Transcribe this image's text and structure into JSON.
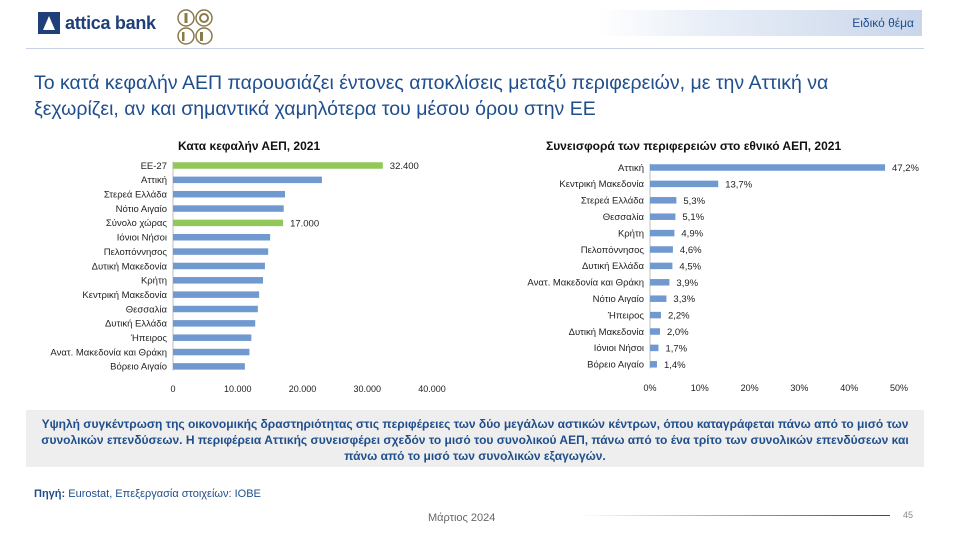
{
  "header": {
    "brand": "attica bank",
    "tag": "Ειδικό θέμα"
  },
  "headline": "Το κατά κεφαλήν ΑΕΠ παρουσιάζει έντονες αποκλίσεις μεταξύ περιφερειών, με την Αττική να ξεχωρίζει, αν και σημαντικά χαμηλότερα του μέσου όρου στην ΕΕ",
  "callout": "Υψηλή συγκέντρωση της οικονομικής δραστηριότητας στις περιφέρειες των δύο μεγάλων αστικών κέντρων, όπου καταγράφεται πάνω από το μισό των συνολικών επενδύσεων. Η περιφέρεια Αττικής συνεισφέρει σχεδόν το μισό του συνολικού ΑΕΠ, πάνω από το ένα τρίτο των συνολικών επενδύσεων και πάνω από το μισό των συνολικών εξαγωγών.",
  "source": {
    "label": "Πηγή:",
    "text": "Eurostat, Επεξεργασία στοιχείων: ΙΟΒΕ"
  },
  "footer": {
    "date": "Μάρτιος 2024",
    "page": "45"
  },
  "colors": {
    "bar": "#7099cf",
    "highlight": "#92c85a",
    "title_blue": "#1f4e8c"
  },
  "chart_data": [
    {
      "type": "bar",
      "orientation": "horizontal",
      "title": "Κατα κεφαλήν ΑΕΠ, 2021",
      "categories": [
        "ΕΕ-27",
        "Αττική",
        "Στερεά Ελλάδα",
        "Νότιο Αιγαίο",
        "Σύνολο χώρας",
        "Ιόνιοι Νήσοι",
        "Πελοπόννησος",
        "Δυτική Μακεδονία",
        "Κρήτη",
        "Κεντρική Μακεδονία",
        "Θεσσαλία",
        "Δυτική Ελλάδα",
        "Ήπειρος",
        "Ανατ. Μακεδονία και Θράκη",
        "Βόρειο Αιγαίο"
      ],
      "values": [
        32400,
        23000,
        17300,
        17100,
        17000,
        15000,
        14700,
        14200,
        13900,
        13300,
        13100,
        12700,
        12100,
        11800,
        11100
      ],
      "highlighted": [
        "ΕΕ-27",
        "Σύνολο χώρας"
      ],
      "data_labels": {
        "ΕΕ-27": "32.400",
        "Σύνολο χώρας": "17.000"
      },
      "xlim": [
        0,
        40000
      ],
      "xticks": [
        0,
        10000,
        20000,
        30000,
        40000
      ],
      "xtick_labels": [
        "0",
        "10.000",
        "20.000",
        "30.000",
        "40.000"
      ],
      "grid": false
    },
    {
      "type": "bar",
      "orientation": "horizontal",
      "title": "Συνεισφορά των περιφερειών στο εθνικό ΑΕΠ, 2021",
      "categories": [
        "Αττική",
        "Κεντρική Μακεδονία",
        "Στερεά Ελλάδα",
        "Θεσσαλία",
        "Κρήτη",
        "Πελοπόννησος",
        "Δυτική Ελλάδα",
        "Ανατ. Μακεδονία και Θράκη",
        "Νότιο Αιγαίο",
        "Ήπειρος",
        "Δυτική Μακεδονία",
        "Ιόνιοι Νήσοι",
        "Βόρειο Αιγαίο"
      ],
      "values": [
        47.2,
        13.7,
        5.3,
        5.1,
        4.9,
        4.6,
        4.5,
        3.9,
        3.3,
        2.2,
        2.0,
        1.7,
        1.4
      ],
      "data_labels": [
        "47,2%",
        "13,7%",
        "5,3%",
        "5,1%",
        "4,9%",
        "4,6%",
        "4,5%",
        "3,9%",
        "3,3%",
        "2,2%",
        "2,0%",
        "1,7%",
        "1,4%"
      ],
      "xlim": [
        0,
        50
      ],
      "xticks": [
        0,
        10,
        20,
        30,
        40,
        50
      ],
      "xtick_labels": [
        "0%",
        "10%",
        "20%",
        "30%",
        "40%",
        "50%"
      ],
      "grid": false
    }
  ]
}
